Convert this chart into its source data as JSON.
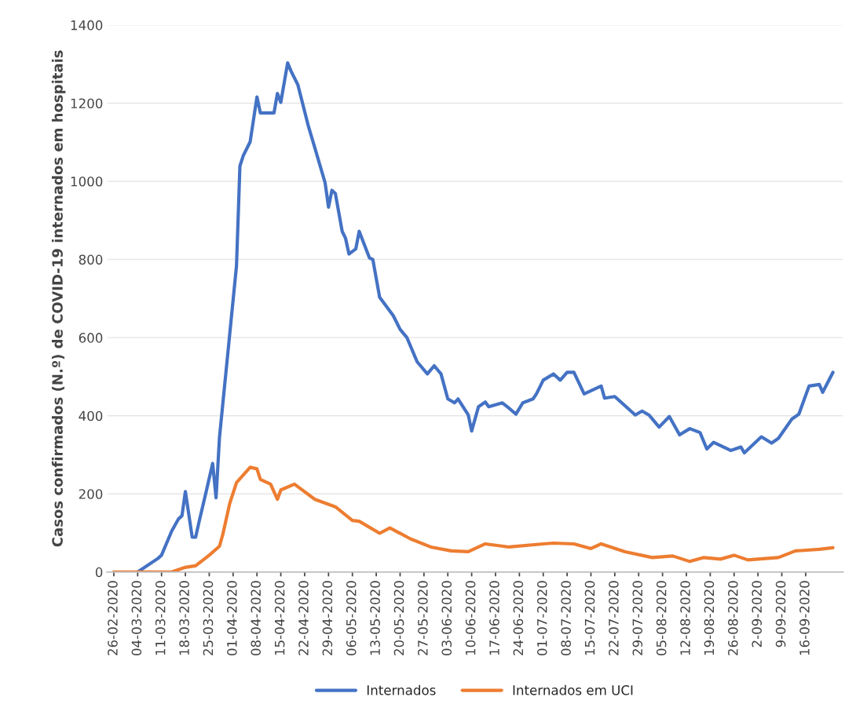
{
  "chart_data": {
    "type": "line",
    "ylabel": "Casos confirmados (N.º) de COVID-19 internados em hospitais",
    "xlim": [
      "2020-02-24",
      "2020-09-27"
    ],
    "ylim": [
      0,
      1400
    ],
    "yticks": [
      0,
      200,
      400,
      600,
      800,
      1000,
      1200,
      1400
    ],
    "xticks": [
      {
        "value": "2020-02-26",
        "label": "26-02-2020"
      },
      {
        "value": "2020-03-04",
        "label": "04-03-2020"
      },
      {
        "value": "2020-03-11",
        "label": "11-03-2020"
      },
      {
        "value": "2020-03-18",
        "label": "18-03-2020"
      },
      {
        "value": "2020-03-25",
        "label": "25-03-2020"
      },
      {
        "value": "2020-04-01",
        "label": "01-04-2020"
      },
      {
        "value": "2020-04-08",
        "label": "08-04-2020"
      },
      {
        "value": "2020-04-15",
        "label": "15-04-2020"
      },
      {
        "value": "2020-04-22",
        "label": "22-04-2020"
      },
      {
        "value": "2020-04-29",
        "label": "29-04-2020"
      },
      {
        "value": "2020-05-06",
        "label": "06-05-2020"
      },
      {
        "value": "2020-05-13",
        "label": "13-05-2020"
      },
      {
        "value": "2020-05-20",
        "label": "20-05-2020"
      },
      {
        "value": "2020-05-27",
        "label": "27-05-2020"
      },
      {
        "value": "2020-06-03",
        "label": "03-06-2020"
      },
      {
        "value": "2020-06-10",
        "label": "10-06-2020"
      },
      {
        "value": "2020-06-17",
        "label": "17-06-2020"
      },
      {
        "value": "2020-06-24",
        "label": "24-06-2020"
      },
      {
        "value": "2020-07-01",
        "label": "01-07-2020"
      },
      {
        "value": "2020-07-08",
        "label": "08-07-2020"
      },
      {
        "value": "2020-07-15",
        "label": "15-07-2020"
      },
      {
        "value": "2020-07-22",
        "label": "22-07-2020"
      },
      {
        "value": "2020-07-29",
        "label": "29-07-2020"
      },
      {
        "value": "2020-08-05",
        "label": "05-08-2020"
      },
      {
        "value": "2020-08-12",
        "label": "12-08-2020"
      },
      {
        "value": "2020-08-19",
        "label": "19-08-2020"
      },
      {
        "value": "2020-08-26",
        "label": "26-08-2020"
      },
      {
        "value": "2020-09-02",
        "label": "2-09-2020"
      },
      {
        "value": "2020-09-09",
        "label": "9-09-2020"
      },
      {
        "value": "2020-09-16",
        "label": "16-09-2020"
      }
    ],
    "grid": "y",
    "legend": "bottom",
    "line_style": "solid",
    "marker": "none",
    "series": [
      {
        "name": "Internados",
        "color": "#4472c4",
        "x": [
          "2020-03-04",
          "2020-03-10",
          "2020-03-11",
          "2020-03-14",
          "2020-03-16",
          "2020-03-17",
          "2020-03-18",
          "2020-03-20",
          "2020-03-21",
          "2020-03-22",
          "2020-03-24",
          "2020-03-26",
          "2020-03-27",
          "2020-03-28",
          "2020-03-31",
          "2020-04-02",
          "2020-04-03",
          "2020-04-04",
          "2020-04-06",
          "2020-04-08",
          "2020-04-09",
          "2020-04-13",
          "2020-04-14",
          "2020-04-15",
          "2020-04-17",
          "2020-04-18",
          "2020-04-20",
          "2020-04-23",
          "2020-04-25",
          "2020-04-28",
          "2020-04-29",
          "2020-04-30",
          "2020-05-01",
          "2020-05-03",
          "2020-05-04",
          "2020-05-05",
          "2020-05-07",
          "2020-05-08",
          "2020-05-11",
          "2020-05-12",
          "2020-05-14",
          "2020-05-18",
          "2020-05-20",
          "2020-05-22",
          "2020-05-25",
          "2020-05-28",
          "2020-05-30",
          "2020-06-01",
          "2020-06-03",
          "2020-06-05",
          "2020-06-06",
          "2020-06-09",
          "2020-06-10",
          "2020-06-12",
          "2020-06-14",
          "2020-06-15",
          "2020-06-19",
          "2020-06-21",
          "2020-06-23",
          "2020-06-25",
          "2020-06-28",
          "2020-06-29",
          "2020-07-01",
          "2020-07-04",
          "2020-07-06",
          "2020-07-08",
          "2020-07-10",
          "2020-07-13",
          "2020-07-15",
          "2020-07-18",
          "2020-07-19",
          "2020-07-22",
          "2020-07-28",
          "2020-07-30",
          "2020-08-01",
          "2020-08-04",
          "2020-08-07",
          "2020-08-10",
          "2020-08-13",
          "2020-08-16",
          "2020-08-18",
          "2020-08-20",
          "2020-08-25",
          "2020-08-28",
          "2020-08-29",
          "2020-09-03",
          "2020-09-06",
          "2020-09-08",
          "2020-09-12",
          "2020-09-14",
          "2020-09-17",
          "2020-09-20",
          "2020-09-21",
          "2020-09-24"
        ],
        "values": [
          0,
          35,
          43,
          105,
          136,
          144,
          206,
          89,
          89,
          128,
          202,
          278,
          190,
          344,
          608,
          784,
          1039,
          1066,
          1101,
          1216,
          1175,
          1175,
          1225,
          1202,
          1303,
          1282,
          1247,
          1144,
          1085,
          996,
          934,
          977,
          969,
          872,
          854,
          814,
          827,
          872,
          804,
          800,
          703,
          656,
          621,
          600,
          538,
          507,
          528,
          507,
          443,
          433,
          443,
          402,
          361,
          423,
          435,
          423,
          433,
          419,
          404,
          433,
          443,
          456,
          491,
          507,
          491,
          511,
          511,
          456,
          464,
          476,
          445,
          449,
          402,
          412,
          402,
          371,
          398,
          351,
          367,
          357,
          315,
          332,
          311,
          320,
          305,
          346,
          330,
          342,
          392,
          404,
          476,
          480,
          460,
          511
        ]
      },
      {
        "name": "Internados em UCI",
        "color": "#ed7d31",
        "x": [
          "2020-02-26",
          "2020-03-14",
          "2020-03-18",
          "2020-03-21",
          "2020-03-25",
          "2020-03-28",
          "2020-03-29",
          "2020-03-31",
          "2020-04-02",
          "2020-04-06",
          "2020-04-08",
          "2020-04-09",
          "2020-04-12",
          "2020-04-14",
          "2020-04-15",
          "2020-04-19",
          "2020-04-25",
          "2020-05-01",
          "2020-05-06",
          "2020-05-08",
          "2020-05-14",
          "2020-05-17",
          "2020-05-23",
          "2020-05-29",
          "2020-06-04",
          "2020-06-09",
          "2020-06-14",
          "2020-06-21",
          "2020-07-01",
          "2020-07-04",
          "2020-07-10",
          "2020-07-15",
          "2020-07-18",
          "2020-07-25",
          "2020-08-02",
          "2020-08-08",
          "2020-08-13",
          "2020-08-17",
          "2020-08-22",
          "2020-08-26",
          "2020-08-30",
          "2020-09-08",
          "2020-09-13",
          "2020-09-20",
          "2020-09-24"
        ],
        "values": [
          0,
          0,
          12,
          16,
          43,
          66,
          97,
          175,
          229,
          268,
          264,
          237,
          225,
          186,
          210,
          225,
          186,
          167,
          132,
          130,
          99,
          113,
          85,
          64,
          54,
          52,
          72,
          64,
          72,
          74,
          72,
          60,
          72,
          52,
          37,
          41,
          27,
          37,
          33,
          43,
          31,
          37,
          54,
          58,
          62
        ]
      }
    ]
  }
}
